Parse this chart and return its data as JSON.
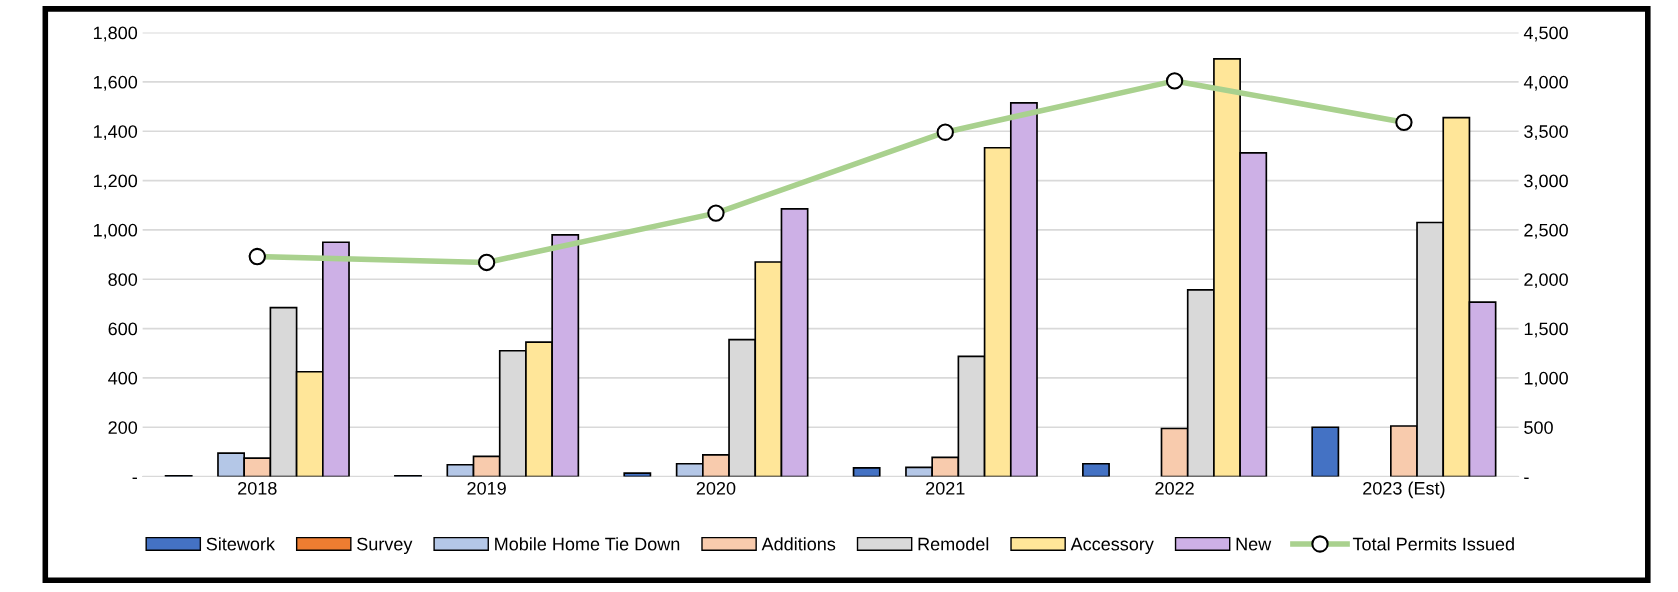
{
  "chart_data": {
    "type": "bar",
    "categories": [
      "2018",
      "2019",
      "2020",
      "2021",
      "2022",
      "2023 (Est)"
    ],
    "series": [
      {
        "name": "Sitework",
        "color": "#4472c4",
        "values": [
          3,
          3,
          14,
          35,
          52,
          200
        ]
      },
      {
        "name": "Survey",
        "color": "#ed7d31",
        "values": [
          null,
          null,
          null,
          null,
          null,
          null
        ]
      },
      {
        "name": "Mobile Home Tie Down",
        "color": "#b4c7e7",
        "values": [
          95,
          48,
          52,
          37,
          null,
          null
        ]
      },
      {
        "name": "Additions",
        "color": "#f8cbad",
        "values": [
          75,
          82,
          88,
          78,
          195,
          205
        ]
      },
      {
        "name": "Remodel",
        "color": "#d9d9d9",
        "values": [
          685,
          510,
          555,
          487,
          757,
          1030
        ]
      },
      {
        "name": "Accessory",
        "color": "#ffe699",
        "values": [
          425,
          545,
          870,
          1333,
          1693,
          1455
        ]
      },
      {
        "name": "New",
        "color": "#cdb0e6",
        "values": [
          950,
          980,
          1085,
          1515,
          1312,
          707
        ]
      },
      {
        "name": "Total Permits Issued",
        "color": "#a9d18e",
        "type": "line",
        "axis": "y2",
        "marker": "circle",
        "values": [
          2230,
          2170,
          2670,
          3490,
          4010,
          3590
        ]
      }
    ],
    "ylim": [
      0,
      1800
    ],
    "yticks": [
      {
        "value": 0,
        "label": "-"
      },
      {
        "value": 200,
        "label": "200"
      },
      {
        "value": 400,
        "label": "400"
      },
      {
        "value": 600,
        "label": "600"
      },
      {
        "value": 800,
        "label": "800"
      },
      {
        "value": 1000,
        "label": "1,000"
      },
      {
        "value": 1200,
        "label": "1,200"
      },
      {
        "value": 1400,
        "label": "1,400"
      },
      {
        "value": 1600,
        "label": "1,600"
      },
      {
        "value": 1800,
        "label": "1,800"
      }
    ],
    "y2lim": [
      0,
      4500
    ],
    "y2ticks": [
      {
        "value": 0,
        "label": "-"
      },
      {
        "value": 500,
        "label": "500"
      },
      {
        "value": 1000,
        "label": "1,000"
      },
      {
        "value": 1500,
        "label": "1,500"
      },
      {
        "value": 2000,
        "label": "2,000"
      },
      {
        "value": 2500,
        "label": "2,500"
      },
      {
        "value": 3000,
        "label": "3,000"
      },
      {
        "value": 3500,
        "label": "3,500"
      },
      {
        "value": 4000,
        "label": "4,000"
      },
      {
        "value": 4500,
        "label": "4,500"
      }
    ],
    "grid": "y",
    "legend": "bottom"
  }
}
